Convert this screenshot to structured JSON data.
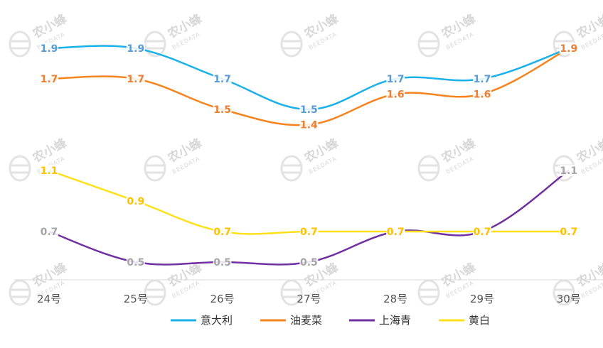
{
  "watermark": {
    "text": "农小蜂",
    "sub": "BEEDATA"
  },
  "chart_data": {
    "type": "line",
    "categories": [
      "24号",
      "25号",
      "26号",
      "27号",
      "28号",
      "29号",
      "30号"
    ],
    "series": [
      {
        "name": "意大利",
        "color": "#1ab0e8",
        "values": [
          1.9,
          1.9,
          1.7,
          1.5,
          1.7,
          1.7,
          1.9
        ]
      },
      {
        "name": "油麦菜",
        "color": "#f5841f",
        "values": [
          1.7,
          1.7,
          1.5,
          1.4,
          1.6,
          1.6,
          1.9
        ]
      },
      {
        "name": "上海青",
        "color": "#7030a0",
        "values": [
          0.7,
          0.5,
          0.5,
          0.5,
          0.7,
          0.7,
          1.1
        ]
      },
      {
        "name": "黄白",
        "color": "#ffe01a",
        "values": [
          1.1,
          0.9,
          0.7,
          0.7,
          0.7,
          0.7,
          0.7
        ]
      }
    ],
    "label_colors": [
      "#5b9bd5",
      "#ed7d31",
      "#a5a5a5",
      "#ffc000"
    ],
    "ylim": [
      0,
      2.0
    ],
    "grid": false,
    "legend_position": "bottom"
  }
}
